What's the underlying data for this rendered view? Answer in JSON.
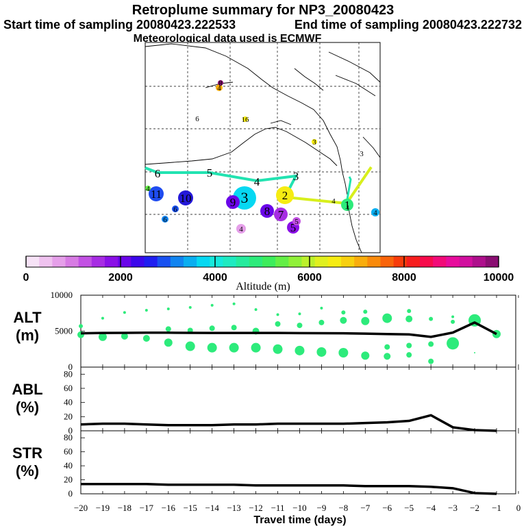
{
  "title": {
    "line1": "Retroplume summary for NP3_20080423",
    "start": "Start time of sampling 20080423.222533",
    "end": "End time of sampling 20080423.222732",
    "met": "Meteorological data used is ECMWF"
  },
  "colorbar": {
    "label": "Altitude  (m)",
    "ticks": [
      "0",
      "2000",
      "4000",
      "6000",
      "8000",
      "10000"
    ],
    "colors": [
      "#f6e2f6",
      "#efc2ef",
      "#e59fe9",
      "#d77be3",
      "#c251e3",
      "#a72ce3",
      "#8a10e6",
      "#6a05e9",
      "#3c08eb",
      "#1f1ef0",
      "#1851f0",
      "#1184f0",
      "#0aaef0",
      "#06d8f2",
      "#16e9dc",
      "#1feac1",
      "#25eb9d",
      "#2deb7b",
      "#3ded5c",
      "#64ef46",
      "#90f038",
      "#bcf02c",
      "#e0f01f",
      "#f6ec12",
      "#f8d00f",
      "#f9ad0d",
      "#f98a0b",
      "#f9640a",
      "#f83c0a",
      "#f71e1e",
      "#f70a4b",
      "#f20a78",
      "#e70c9c",
      "#d10f9e",
      "#ae0f8c",
      "#8a0e72"
    ]
  },
  "map": {
    "point_labels": [
      "6",
      "5",
      "4",
      "3",
      "2",
      "1",
      "11",
      "10",
      "9",
      "8",
      "7",
      "6",
      "5",
      "5",
      "4",
      "4",
      "4",
      "4",
      "3",
      "3",
      "16",
      "6",
      "4",
      "6",
      "1",
      "8"
    ]
  },
  "chart_data": [
    {
      "type": "line",
      "panel": "ALT",
      "ylabel": [
        "ALT",
        "(m)"
      ],
      "ylim": [
        0,
        10000
      ],
      "yticks": [
        "10000",
        "5000",
        "0"
      ],
      "x": [
        -20,
        -19,
        -18,
        -17,
        -16,
        -15,
        -14,
        -13,
        -12,
        -11,
        -10,
        -9,
        -8,
        -7,
        -6,
        -5,
        -4,
        -3,
        -2,
        -1
      ],
      "values": [
        4700,
        4750,
        4760,
        4780,
        4780,
        4760,
        4750,
        4750,
        4750,
        4750,
        4730,
        4720,
        4700,
        4650,
        4600,
        4550,
        4200,
        4800,
        6200,
        4600
      ],
      "scatter_note": "green circles indicate plume altitude clusters; size ~ fraction of particles"
    },
    {
      "type": "line",
      "panel": "ABL",
      "ylabel": [
        "ABL",
        "(%)"
      ],
      "ylim": [
        0,
        90
      ],
      "yticks": [
        "80",
        "60",
        "40",
        "20",
        "0"
      ],
      "x": [
        -20,
        -19,
        -18,
        -17,
        -16,
        -15,
        -14,
        -13,
        -12,
        -11,
        -10,
        -9,
        -8,
        -7,
        -6,
        -5,
        -4,
        -3,
        -2,
        -1
      ],
      "values": [
        9,
        10,
        10,
        9,
        8,
        8,
        8,
        9,
        9,
        10,
        10,
        10,
        10,
        11,
        12,
        14,
        22,
        5,
        1,
        0
      ]
    },
    {
      "type": "line",
      "panel": "STR",
      "ylabel": [
        "STR",
        "(%)"
      ],
      "ylim": [
        0,
        90
      ],
      "yticks": [
        "80",
        "60",
        "40",
        "20",
        "0"
      ],
      "x": [
        -20,
        -19,
        -18,
        -17,
        -16,
        -15,
        -14,
        -13,
        -12,
        -11,
        -10,
        -9,
        -8,
        -7,
        -6,
        -5,
        -4,
        -3,
        -2,
        -1
      ],
      "values": [
        14,
        14,
        14,
        14,
        13,
        13,
        13,
        13,
        12,
        12,
        12,
        12,
        12,
        11,
        11,
        11,
        10,
        8,
        1,
        0
      ],
      "xlabel": "Travel time (days)",
      "xticks": [
        "−20",
        "−19",
        "−18",
        "−17",
        "−16",
        "−15",
        "−14",
        "−13",
        "−12",
        "−11",
        "−10",
        "−9",
        "−8",
        "−7",
        "−6",
        "−5",
        "−4",
        "−3",
        "−2",
        "−1",
        "0"
      ]
    }
  ]
}
